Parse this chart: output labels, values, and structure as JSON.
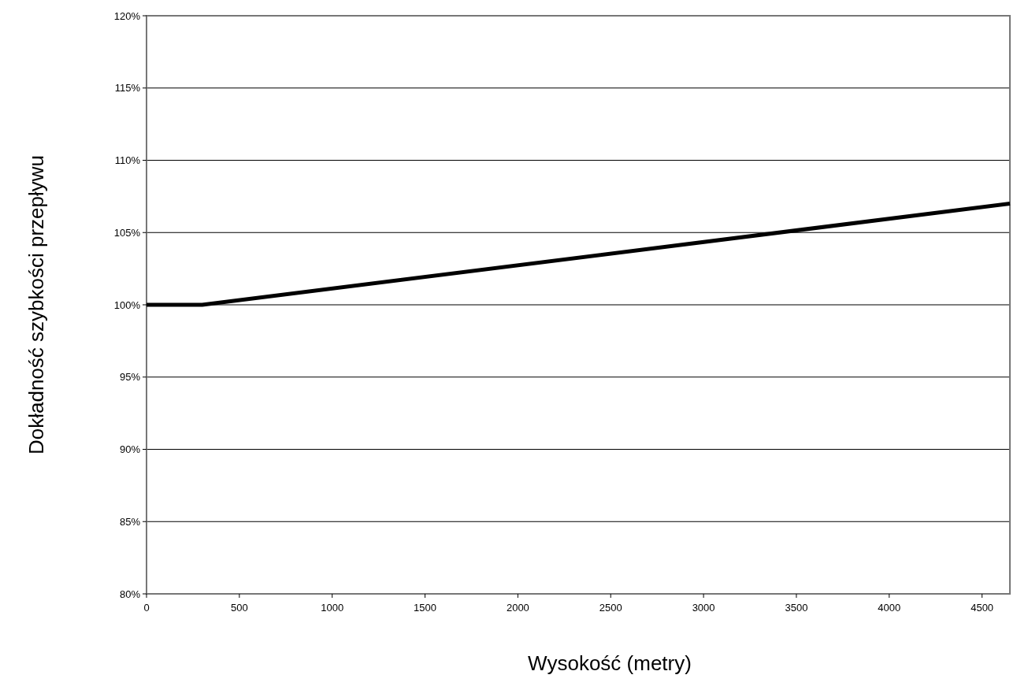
{
  "chart_data": {
    "type": "line",
    "xlabel": "Wysokość (metry)",
    "ylabel": "Dokładność szybkości przepływu",
    "x": [
      0,
      300,
      4650
    ],
    "series": [
      {
        "color": "#000000",
        "values": [
          100,
          100,
          107
        ]
      }
    ],
    "xlim": [
      0,
      4650
    ],
    "xticks": [
      0,
      500,
      1000,
      1500,
      2000,
      2500,
      3000,
      3500,
      4000,
      4500
    ],
    "ylim": [
      80,
      120
    ],
    "yticks": [
      {
        "value": 80,
        "label": "80%"
      },
      {
        "value": 85,
        "label": "85%"
      },
      {
        "value": 90,
        "label": "90%"
      },
      {
        "value": 95,
        "label": "95%"
      },
      {
        "value": 100,
        "label": "100%"
      },
      {
        "value": 105,
        "label": "105%"
      },
      {
        "value": 110,
        "label": "110%"
      },
      {
        "value": 115,
        "label": "115%"
      },
      {
        "value": 120,
        "label": "120%"
      }
    ],
    "grid": "y",
    "marker": "none",
    "line_style": "solid"
  }
}
